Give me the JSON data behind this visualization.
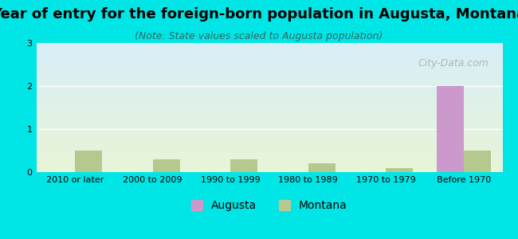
{
  "title": "Year of entry for the foreign-born population in Augusta, Montana",
  "subtitle": "(Note: State values scaled to Augusta population)",
  "categories": [
    "2010 or later",
    "2000 to 2009",
    "1990 to 1999",
    "1980 to 1989",
    "1970 to 1979",
    "Before 1970"
  ],
  "augusta_values": [
    0,
    0,
    0,
    0,
    0,
    2.0
  ],
  "montana_values": [
    0.5,
    0.3,
    0.3,
    0.2,
    0.1,
    0.5
  ],
  "augusta_color": "#cc99cc",
  "montana_color": "#b5c98e",
  "background_outer": "#00e5e5",
  "background_plot_top": "#d8eef8",
  "background_plot_bottom": "#e8f5d8",
  "ylim": [
    0,
    3
  ],
  "yticks": [
    0,
    1,
    2,
    3
  ],
  "bar_width": 0.35,
  "title_fontsize": 13,
  "subtitle_fontsize": 9,
  "tick_fontsize": 8,
  "legend_fontsize": 10,
  "watermark": "City-Data.com"
}
